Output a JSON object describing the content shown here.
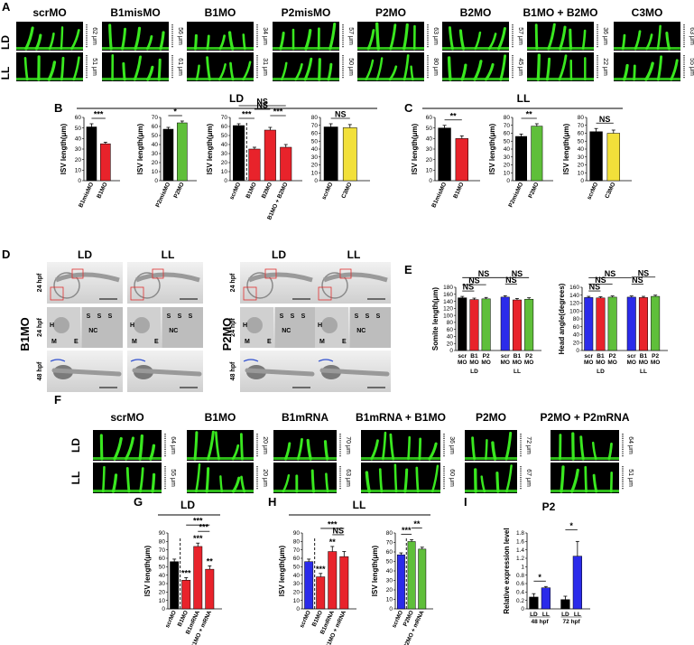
{
  "panel_letters": [
    "A",
    "B",
    "C",
    "D",
    "E",
    "F",
    "G",
    "H",
    "I"
  ],
  "panelA": {
    "col_titles": [
      "scrMO",
      "B1misMO",
      "B1MO",
      "P2misMO",
      "P2MO",
      "B2MO",
      "B1MO + B2MO",
      "C3MO"
    ],
    "row_labels": [
      "LD",
      "LL"
    ],
    "ld_lengths": [
      "62 μm",
      "56 μm",
      "34 μm",
      "57 μm",
      "63 μm",
      "57 μm",
      "36 μm",
      "63 μm"
    ],
    "ll_lengths": [
      "51 μm",
      "61 μm",
      "31 μm",
      "50 μm",
      "80 μm",
      "45 μm",
      "22 μm",
      "55 μm"
    ]
  },
  "panelB_title": "LD",
  "panelC_title": "LL",
  "panelD": {
    "left_side_label": "B1MO",
    "right_side_label": "P2MO",
    "col_labels": [
      "LD",
      "LL",
      "LD",
      "LL"
    ],
    "row_labels": [
      "24 hpf",
      "24 hpf",
      "48 hpf"
    ],
    "annot_H": "H",
    "annot_M": "M",
    "annot_E": "E",
    "annot_S": "S",
    "annot_NC": "NC"
  },
  "panelF": {
    "col_titles": [
      "scrMO",
      "B1MO",
      "B1mRNA",
      "B1mRNA + B1MO",
      "P2MO",
      "P2MO + P2mRNA"
    ],
    "row_labels": [
      "LD",
      "LL"
    ],
    "ld_lengths": [
      "64 μm",
      "20 μm",
      "70 μm",
      "36 μm",
      "72 μm",
      "64 μm"
    ],
    "ll_lengths": [
      "55 μm",
      "20 μm",
      "63 μm",
      "60 μm",
      "67 μm",
      "51 μm"
    ]
  },
  "panelG_title": "LD",
  "panelH_title": "LL",
  "panelI_title": "P2",
  "colors": {
    "black": "#000000",
    "red": "#e8232b",
    "green": "#5fbf3a",
    "yellow": "#f2e03a",
    "blue": "#2b2bea",
    "fish": "#39e81f"
  },
  "chart_data": [
    {
      "id": "B1",
      "type": "bar",
      "ylabel": "ISV length(μm)",
      "ylim": [
        0,
        60
      ],
      "yticks": [
        0,
        10,
        20,
        30,
        40,
        50,
        60
      ],
      "categories": [
        "B1misMO",
        "B1MO"
      ],
      "values": [
        51,
        35
      ],
      "errors": [
        3,
        1.5
      ],
      "colors": [
        "black",
        "red"
      ],
      "sig": [
        {
          "a": 0,
          "b": 1,
          "text": "***"
        }
      ]
    },
    {
      "id": "B2",
      "type": "bar",
      "ylabel": "ISV length(μm)",
      "ylim": [
        0,
        70
      ],
      "yticks": [
        0,
        10,
        20,
        30,
        40,
        50,
        60,
        70
      ],
      "categories": [
        "P2misMO",
        "P2MO"
      ],
      "values": [
        57,
        64
      ],
      "errors": [
        2,
        2
      ],
      "colors": [
        "black",
        "green"
      ],
      "sig": [
        {
          "a": 0,
          "b": 1,
          "text": "*"
        }
      ]
    },
    {
      "id": "B3",
      "type": "bar",
      "ylabel": "ISV length(μm)",
      "ylim": [
        0,
        70
      ],
      "yticks": [
        0,
        10,
        20,
        30,
        40,
        50,
        60,
        70
      ],
      "categories": [
        "scrMO",
        "B1MO",
        "B2MO",
        "B1MO + B2MO"
      ],
      "values": [
        61,
        35,
        56,
        37
      ],
      "errors": [
        2,
        2,
        3,
        3
      ],
      "colors": [
        "black",
        "red",
        "red",
        "red"
      ],
      "dashed_after": 0,
      "sig": [
        {
          "a": 0,
          "b": 1,
          "text": "***"
        },
        {
          "a": 2,
          "b": 3,
          "text": "***"
        },
        {
          "a": 1,
          "b": 2,
          "text": "NS"
        },
        {
          "a": 0,
          "b": 3,
          "text": "NS"
        }
      ]
    },
    {
      "id": "B4",
      "type": "bar",
      "ylabel": "",
      "ylim": [
        0,
        80
      ],
      "yticks": [
        0,
        10,
        20,
        30,
        40,
        50,
        60,
        70,
        80
      ],
      "categories": [
        "scrMO",
        "C3MO"
      ],
      "values": [
        68,
        67
      ],
      "errors": [
        4,
        4
      ],
      "colors": [
        "black",
        "yellow"
      ],
      "sig": [
        {
          "a": 0,
          "b": 1,
          "text": "NS"
        }
      ]
    },
    {
      "id": "C1",
      "type": "bar",
      "ylabel": "ISV length(μm)",
      "ylim": [
        0,
        60
      ],
      "yticks": [
        0,
        10,
        20,
        30,
        40,
        50,
        60
      ],
      "categories": [
        "B1misMO",
        "B1MO"
      ],
      "values": [
        50,
        40
      ],
      "errors": [
        2.5,
        2.5
      ],
      "colors": [
        "black",
        "red"
      ],
      "sig": [
        {
          "a": 0,
          "b": 1,
          "text": "**"
        }
      ]
    },
    {
      "id": "C2",
      "type": "bar",
      "ylabel": "ISV length(μm)",
      "ylim": [
        0,
        80
      ],
      "yticks": [
        0,
        10,
        20,
        30,
        40,
        50,
        60,
        70,
        80
      ],
      "categories": [
        "P2misMO",
        "P2MO"
      ],
      "values": [
        56,
        69
      ],
      "errors": [
        3,
        3
      ],
      "colors": [
        "black",
        "green"
      ],
      "sig": [
        {
          "a": 0,
          "b": 1,
          "text": "**"
        }
      ]
    },
    {
      "id": "C3",
      "type": "bar",
      "ylabel": "ISV length(μm)",
      "ylim": [
        0,
        80
      ],
      "yticks": [
        0,
        10,
        20,
        30,
        40,
        50,
        60,
        70,
        80
      ],
      "categories": [
        "scrMO",
        "C3MO"
      ],
      "values": [
        62,
        60
      ],
      "errors": [
        4,
        4
      ],
      "colors": [
        "black",
        "yellow"
      ],
      "sig": [
        {
          "a": 0,
          "b": 1,
          "text": "NS"
        }
      ]
    },
    {
      "id": "E1",
      "type": "bar",
      "ylabel": "Somite length(μm)",
      "ylim": [
        0,
        180
      ],
      "yticks": [
        0,
        20,
        40,
        60,
        80,
        100,
        120,
        140,
        160,
        180
      ],
      "categories": [
        "scr MO",
        "B1 MO",
        "P2 MO",
        "scr MO",
        "B1 MO",
        "P2 MO"
      ],
      "tick_top": [
        "scr",
        "B1",
        "P2",
        "scr",
        "B1",
        "P2"
      ],
      "tick_bottom": [
        "MO",
        "MO",
        "MO",
        "MO",
        "MO",
        "MO"
      ],
      "group_labels": [
        "LD",
        "LL"
      ],
      "values": [
        150,
        145,
        147,
        152,
        144,
        146
      ],
      "errors": [
        4,
        4,
        4,
        4,
        4,
        4
      ],
      "colors": [
        "black",
        "red",
        "green",
        "blue",
        "red",
        "green"
      ],
      "sig": [
        {
          "a": 0,
          "b": 1,
          "text": "NS"
        },
        {
          "a": 0,
          "b": 2,
          "text": "NS"
        },
        {
          "a": 3,
          "b": 4,
          "text": "NS"
        },
        {
          "a": 3,
          "b": 5,
          "text": "NS"
        },
        {
          "a": 0,
          "b": 3,
          "text": "NS"
        }
      ]
    },
    {
      "id": "E2",
      "type": "bar",
      "ylabel": "Head angle(degrees)",
      "ylim": [
        0,
        160
      ],
      "yticks": [
        0,
        20,
        40,
        60,
        80,
        100,
        120,
        140,
        160
      ],
      "categories": [
        "scr MO",
        "B1 MO",
        "P2 MO",
        "scr MO",
        "B1 MO",
        "P2 MO"
      ],
      "tick_top": [
        "scr",
        "B1",
        "P2",
        "scr",
        "B1",
        "P2"
      ],
      "tick_bottom": [
        "MO",
        "MO",
        "MO",
        "MO",
        "MO",
        "MO"
      ],
      "group_labels": [
        "LD",
        "LL"
      ],
      "values": [
        134,
        133,
        135,
        135,
        134,
        137
      ],
      "errors": [
        3,
        3,
        3,
        3,
        3,
        3
      ],
      "colors": [
        "blue",
        "red",
        "green",
        "blue",
        "red",
        "green"
      ],
      "sig": [
        {
          "a": 0,
          "b": 1,
          "text": "NS"
        },
        {
          "a": 0,
          "b": 2,
          "text": "NS"
        },
        {
          "a": 3,
          "b": 4,
          "text": "NS"
        },
        {
          "a": 3,
          "b": 5,
          "text": "NS"
        },
        {
          "a": 0,
          "b": 3,
          "text": "NS"
        }
      ]
    },
    {
      "id": "G",
      "type": "bar",
      "ylabel": "ISV length(μm)",
      "ylim": [
        0,
        90
      ],
      "yticks": [
        0,
        10,
        20,
        30,
        40,
        50,
        60,
        70,
        80,
        90
      ],
      "categories": [
        "scrMO",
        "B1MO",
        "B1mRNA",
        "B1MO + mRNA"
      ],
      "values": [
        56,
        34,
        74,
        47
      ],
      "errors": [
        3,
        3,
        4,
        4
      ],
      "colors": [
        "black",
        "red",
        "red",
        "red"
      ],
      "dashed_after": 0,
      "bar_labels": [
        "",
        "***",
        "***",
        "**"
      ],
      "sig": [
        {
          "a": 2,
          "b": 3,
          "text": "***"
        },
        {
          "a": 1,
          "b": 3,
          "text": "***"
        }
      ]
    },
    {
      "id": "H1",
      "type": "bar",
      "ylabel": "ISV length(μm)",
      "ylim": [
        0,
        90
      ],
      "yticks": [
        0,
        10,
        20,
        30,
        40,
        50,
        60,
        70,
        80,
        90
      ],
      "categories": [
        "scrMO",
        "B1MO",
        "B1mRNA",
        "B1MO + mRNA"
      ],
      "values": [
        56,
        38,
        68,
        62
      ],
      "errors": [
        3,
        4,
        6,
        6
      ],
      "colors": [
        "blue",
        "red",
        "red",
        "red"
      ],
      "dashed_after": 0,
      "bar_labels": [
        "",
        "***",
        "**",
        ""
      ],
      "sig": [
        {
          "a": 2,
          "b": 3,
          "text": "NS"
        },
        {
          "a": 1,
          "b": 3,
          "text": "***"
        }
      ]
    },
    {
      "id": "H2",
      "type": "bar",
      "ylabel": "ISV length(μm)",
      "ylim": [
        0,
        80
      ],
      "yticks": [
        0,
        10,
        20,
        30,
        40,
        50,
        60,
        70,
        80
      ],
      "categories": [
        "scrMO",
        "P2MO",
        "P2MO + mRNA"
      ],
      "values": [
        57,
        71,
        63
      ],
      "errors": [
        2,
        2,
        2
      ],
      "colors": [
        "blue",
        "green",
        "green"
      ],
      "dashed_after": 0,
      "sig": [
        {
          "a": 0,
          "b": 1,
          "text": "***"
        },
        {
          "a": 1,
          "b": 2,
          "text": "**"
        }
      ]
    },
    {
      "id": "I",
      "type": "bar",
      "ylabel": "Relative expression level",
      "ylim": [
        0,
        1.8
      ],
      "yticks": [
        0,
        0.2,
        0.4,
        0.6,
        0.8,
        1,
        1.2,
        1.4,
        1.6,
        1.8
      ],
      "categories": [
        "LD 48 hpf",
        "LL 48 hpf",
        "LD 72 hpf",
        "LL 72 hpf"
      ],
      "tick_top": [
        "LD",
        "LL",
        "LD",
        "LL"
      ],
      "group_labels": [
        "48 hpf",
        "72 hpf"
      ],
      "values": [
        0.28,
        0.5,
        0.22,
        1.25
      ],
      "errors": [
        0.08,
        0.03,
        0.08,
        0.35
      ],
      "colors": [
        "black",
        "blue",
        "black",
        "blue"
      ],
      "sig": [
        {
          "a": 0,
          "b": 1,
          "text": "*"
        },
        {
          "a": 2,
          "b": 3,
          "text": "*"
        }
      ]
    }
  ]
}
